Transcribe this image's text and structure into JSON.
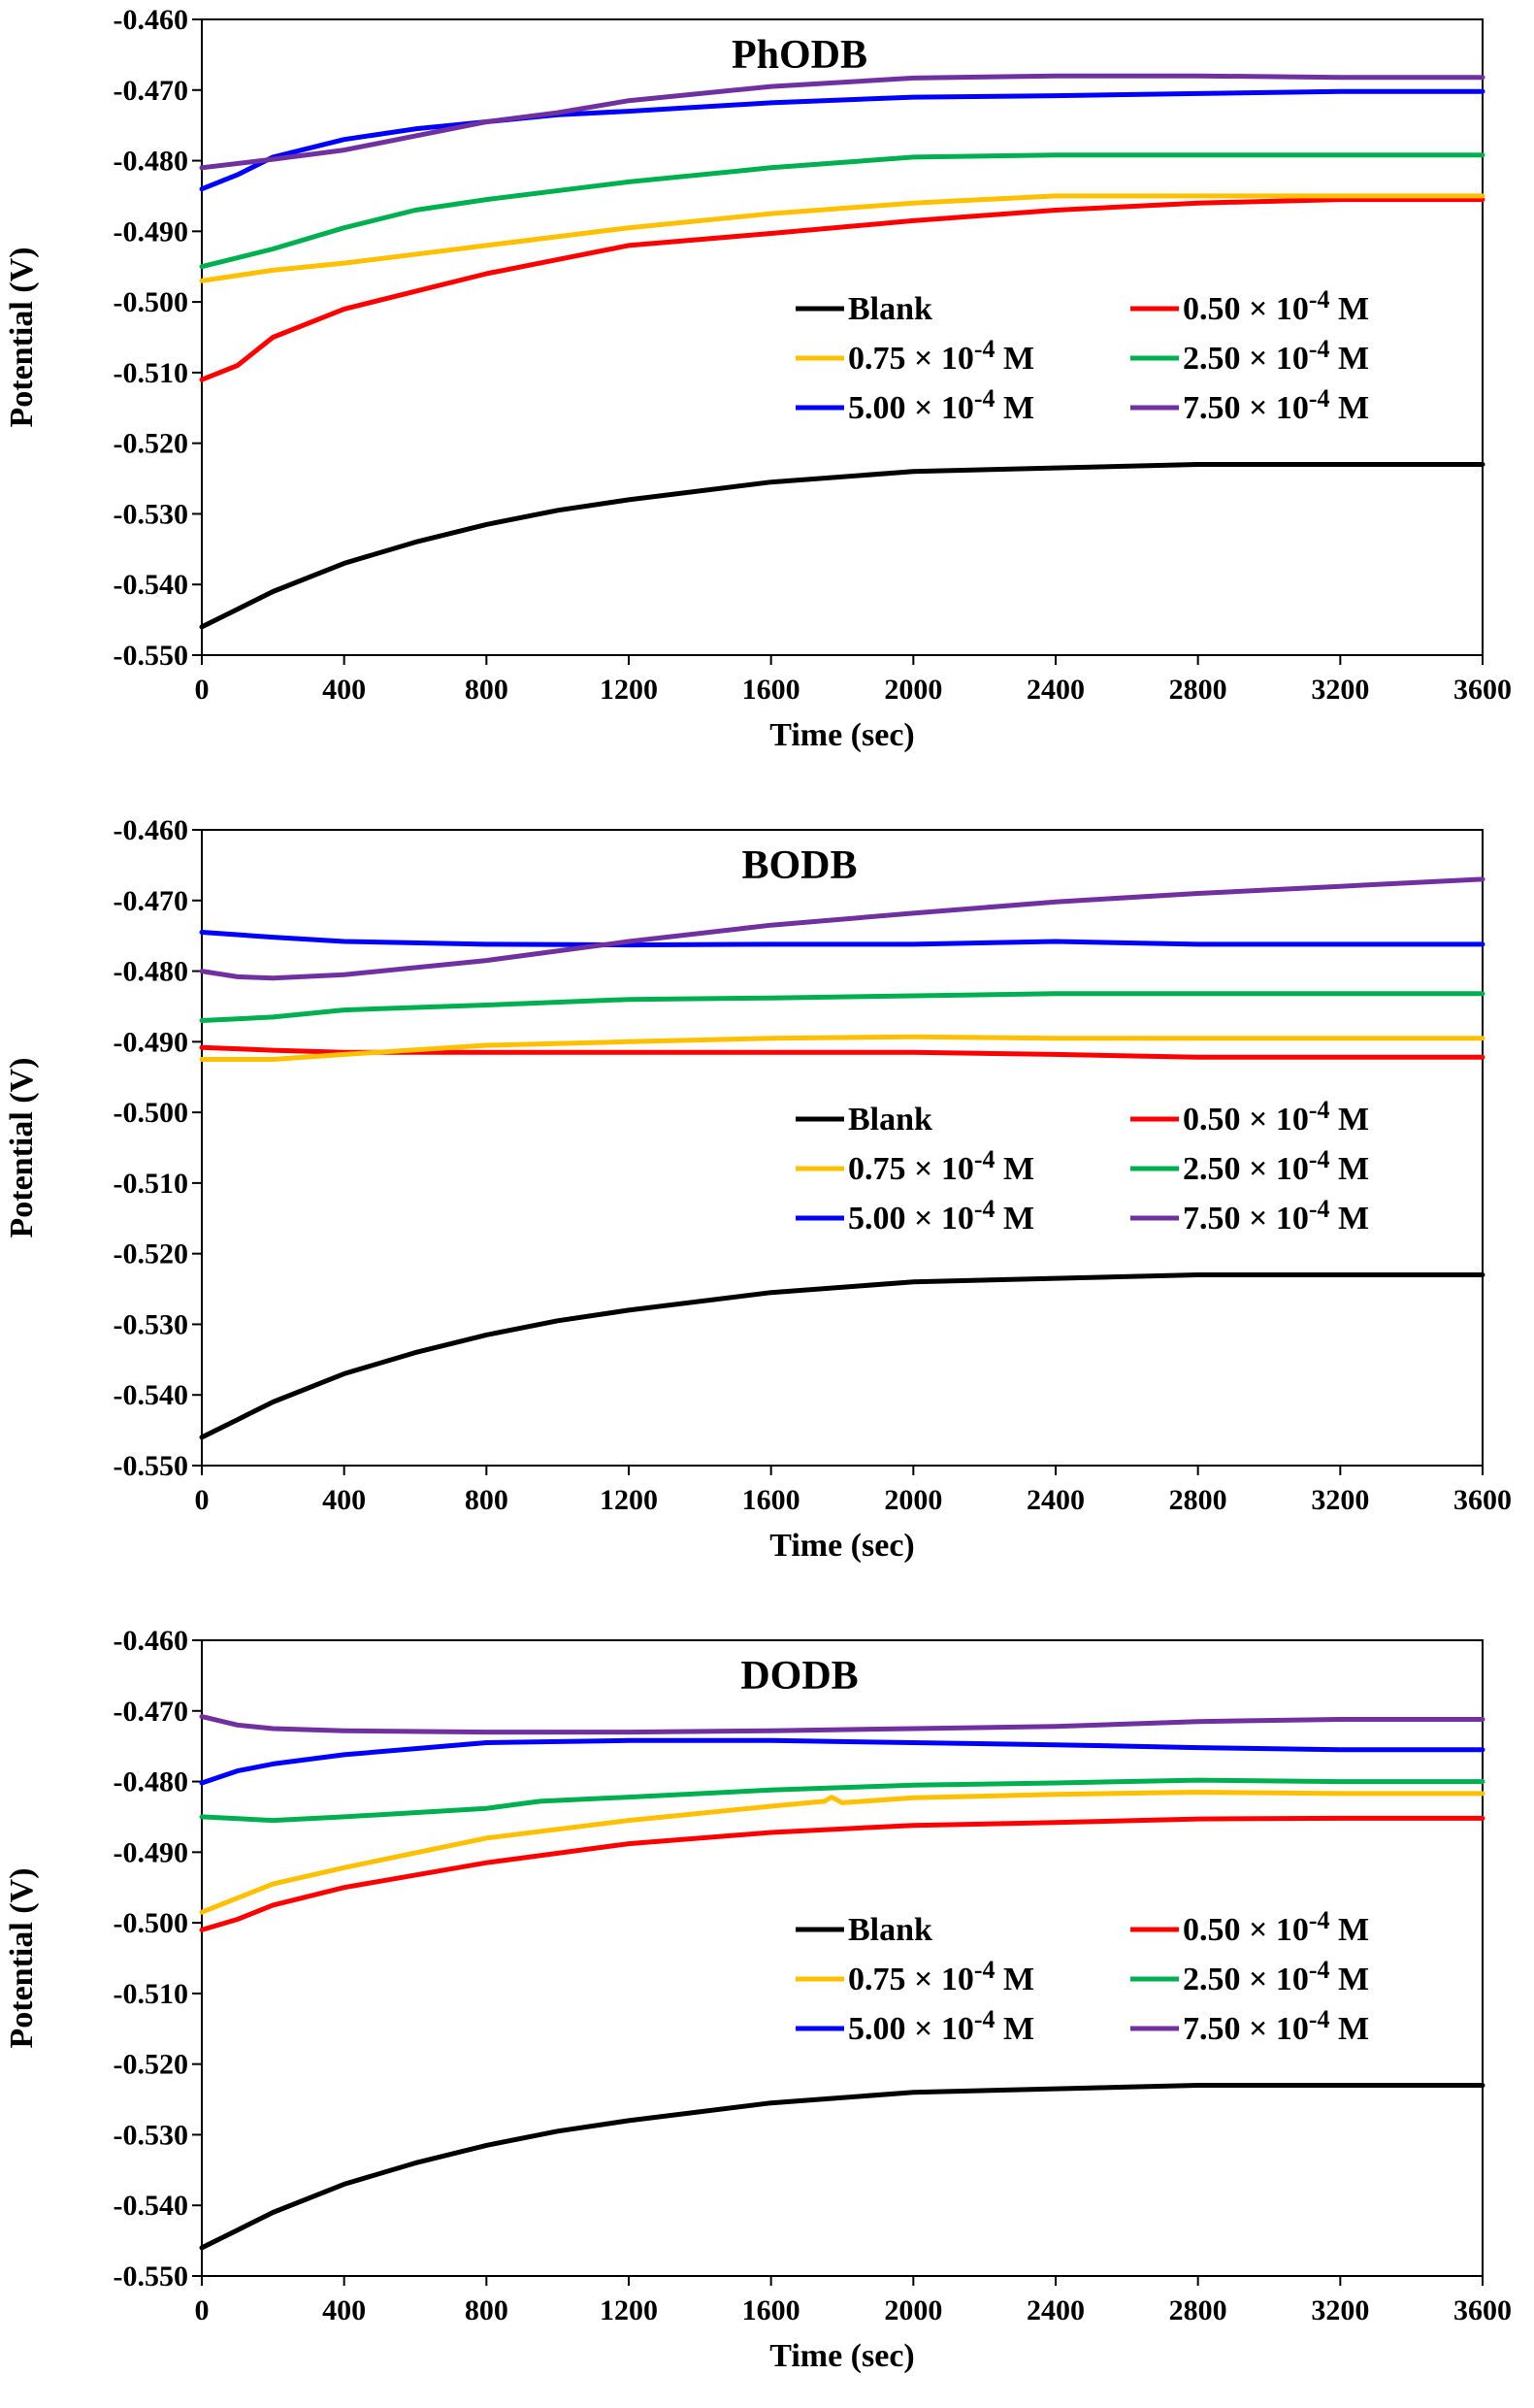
{
  "chart_data": [
    {
      "type": "line",
      "title": "PhODB",
      "xlabel": "Time (sec)",
      "ylabel": "Potential (V)",
      "xlim": [
        0,
        3600
      ],
      "ylim": [
        -0.55,
        -0.46
      ],
      "xticks": [
        0,
        400,
        800,
        1200,
        1600,
        2000,
        2400,
        2800,
        3200,
        3600
      ],
      "yticks": [
        -0.46,
        -0.47,
        -0.48,
        -0.49,
        -0.5,
        -0.51,
        -0.52,
        -0.53,
        -0.54,
        -0.55
      ],
      "ytick_labels": [
        "-0.460",
        "-0.470",
        "-0.480",
        "-0.490",
        "-0.500",
        "-0.510",
        "-0.520",
        "-0.530",
        "-0.540",
        "-0.550"
      ],
      "grid": false,
      "legend_position": "right",
      "series": [
        {
          "name": "Blank",
          "color": "#000000",
          "x": [
            0,
            100,
            200,
            400,
            600,
            800,
            1000,
            1200,
            1600,
            2000,
            2400,
            2800,
            3200,
            3600
          ],
          "y": [
            -0.546,
            -0.5435,
            -0.541,
            -0.537,
            -0.534,
            -0.5315,
            -0.5295,
            -0.528,
            -0.5255,
            -0.524,
            -0.5235,
            -0.523,
            -0.523,
            -0.523
          ]
        },
        {
          "name": "0.50 × 10-4 M",
          "color": "#ff0000",
          "x": [
            0,
            100,
            200,
            400,
            600,
            800,
            1000,
            1200,
            1600,
            2000,
            2400,
            2800,
            3200,
            3600
          ],
          "y": [
            -0.511,
            -0.509,
            -0.505,
            -0.501,
            -0.4985,
            -0.496,
            -0.494,
            -0.492,
            -0.4903,
            -0.4885,
            -0.487,
            -0.486,
            -0.4855,
            -0.4855
          ]
        },
        {
          "name": "0.75 × 10-4 M",
          "color": "#ffc000",
          "x": [
            0,
            200,
            400,
            800,
            1200,
            1600,
            2000,
            2400,
            2800,
            3200,
            3600
          ],
          "y": [
            -0.497,
            -0.4955,
            -0.4945,
            -0.492,
            -0.4895,
            -0.4875,
            -0.486,
            -0.485,
            -0.485,
            -0.485,
            -0.485
          ]
        },
        {
          "name": "2.50 × 10-4 M",
          "color": "#00b050",
          "x": [
            0,
            200,
            400,
            600,
            800,
            1200,
            1600,
            2000,
            2400,
            2800,
            3200,
            3600
          ],
          "y": [
            -0.495,
            -0.4925,
            -0.4895,
            -0.487,
            -0.4855,
            -0.483,
            -0.481,
            -0.4795,
            -0.4792,
            -0.4792,
            -0.4792,
            -0.4792
          ]
        },
        {
          "name": "5.00 × 10-4 M",
          "color": "#0000ff",
          "x": [
            0,
            100,
            200,
            400,
            600,
            800,
            1000,
            1200,
            1600,
            2000,
            2400,
            2800,
            3200,
            3600
          ],
          "y": [
            -0.484,
            -0.482,
            -0.4795,
            -0.477,
            -0.4755,
            -0.4745,
            -0.4735,
            -0.473,
            -0.4718,
            -0.471,
            -0.4708,
            -0.4705,
            -0.4702,
            -0.4702
          ]
        },
        {
          "name": "7.50 × 10-4 M",
          "color": "#7030a0",
          "x": [
            0,
            200,
            400,
            600,
            800,
            1000,
            1200,
            1600,
            2000,
            2400,
            2800,
            3200,
            3600
          ],
          "y": [
            -0.481,
            -0.4798,
            -0.4785,
            -0.4765,
            -0.4745,
            -0.4732,
            -0.4715,
            -0.4695,
            -0.4683,
            -0.468,
            -0.468,
            -0.4682,
            -0.4682
          ]
        }
      ]
    },
    {
      "type": "line",
      "title": "BODB",
      "xlabel": "Time (sec)",
      "ylabel": "Potential (V)",
      "xlim": [
        0,
        3600
      ],
      "ylim": [
        -0.55,
        -0.46
      ],
      "xticks": [
        0,
        400,
        800,
        1200,
        1600,
        2000,
        2400,
        2800,
        3200,
        3600
      ],
      "yticks": [
        -0.46,
        -0.47,
        -0.48,
        -0.49,
        -0.5,
        -0.51,
        -0.52,
        -0.53,
        -0.54,
        -0.55
      ],
      "ytick_labels": [
        "-0.460",
        "-0.470",
        "-0.480",
        "-0.490",
        "-0.500",
        "-0.510",
        "-0.520",
        "-0.530",
        "-0.540",
        "-0.550"
      ],
      "grid": false,
      "legend_position": "right",
      "series": [
        {
          "name": "Blank",
          "color": "#000000",
          "x": [
            0,
            100,
            200,
            400,
            600,
            800,
            1000,
            1200,
            1600,
            2000,
            2400,
            2800,
            3200,
            3600
          ],
          "y": [
            -0.546,
            -0.5435,
            -0.541,
            -0.537,
            -0.534,
            -0.5315,
            -0.5295,
            -0.528,
            -0.5255,
            -0.524,
            -0.5235,
            -0.523,
            -0.523,
            -0.523
          ]
        },
        {
          "name": "0.50 × 10-4 M",
          "color": "#ff0000",
          "x": [
            0,
            200,
            400,
            800,
            1200,
            1600,
            2000,
            2400,
            2800,
            3200,
            3600
          ],
          "y": [
            -0.4908,
            -0.4912,
            -0.4915,
            -0.4915,
            -0.4915,
            -0.4915,
            -0.4915,
            -0.4918,
            -0.4922,
            -0.4922,
            -0.4922
          ]
        },
        {
          "name": "0.75 × 10-4 M",
          "color": "#ffc000",
          "x": [
            0,
            200,
            400,
            800,
            1200,
            1600,
            2000,
            2400,
            2800,
            3200,
            3600
          ],
          "y": [
            -0.4925,
            -0.4925,
            -0.4918,
            -0.4905,
            -0.49,
            -0.4895,
            -0.4893,
            -0.4895,
            -0.4895,
            -0.4895,
            -0.4895
          ]
        },
        {
          "name": "2.50 × 10-4 M",
          "color": "#00b050",
          "x": [
            0,
            200,
            400,
            800,
            1200,
            1600,
            2000,
            2400,
            2800,
            3200,
            3600
          ],
          "y": [
            -0.487,
            -0.4865,
            -0.4855,
            -0.4848,
            -0.484,
            -0.4838,
            -0.4835,
            -0.4832,
            -0.4832,
            -0.4832,
            -0.4832
          ]
        },
        {
          "name": "5.00 × 10-4 M",
          "color": "#0000ff",
          "x": [
            0,
            200,
            400,
            800,
            1200,
            1600,
            2000,
            2400,
            2800,
            3200,
            3600
          ],
          "y": [
            -0.4745,
            -0.4752,
            -0.4758,
            -0.4762,
            -0.4763,
            -0.4762,
            -0.4762,
            -0.4758,
            -0.4762,
            -0.4762,
            -0.4762
          ]
        },
        {
          "name": "7.50 × 10-4 M",
          "color": "#7030a0",
          "x": [
            0,
            100,
            200,
            400,
            800,
            1200,
            1600,
            2000,
            2400,
            2800,
            3200,
            3600
          ],
          "y": [
            -0.48,
            -0.4808,
            -0.481,
            -0.4805,
            -0.4785,
            -0.4758,
            -0.4735,
            -0.4718,
            -0.4702,
            -0.469,
            -0.468,
            -0.467
          ]
        }
      ]
    },
    {
      "type": "line",
      "title": "DODB",
      "xlabel": "Time (sec)",
      "ylabel": "Potential (V)",
      "xlim": [
        0,
        3600
      ],
      "ylim": [
        -0.55,
        -0.46
      ],
      "xticks": [
        0,
        400,
        800,
        1200,
        1600,
        2000,
        2400,
        2800,
        3200,
        3600
      ],
      "yticks": [
        -0.46,
        -0.47,
        -0.48,
        -0.49,
        -0.5,
        -0.51,
        -0.52,
        -0.53,
        -0.54,
        -0.55
      ],
      "ytick_labels": [
        "-0.460",
        "-0.470",
        "-0.480",
        "-0.490",
        "-0.500",
        "-0.510",
        "-0.520",
        "-0.530",
        "-0.540",
        "-0.550"
      ],
      "grid": false,
      "legend_position": "right",
      "series": [
        {
          "name": "Blank",
          "color": "#000000",
          "x": [
            0,
            100,
            200,
            400,
            600,
            800,
            1000,
            1200,
            1600,
            2000,
            2400,
            2800,
            3200,
            3600
          ],
          "y": [
            -0.546,
            -0.5435,
            -0.541,
            -0.537,
            -0.534,
            -0.5315,
            -0.5295,
            -0.528,
            -0.5255,
            -0.524,
            -0.5235,
            -0.523,
            -0.523,
            -0.523
          ]
        },
        {
          "name": "0.50 × 10-4 M",
          "color": "#ff0000",
          "x": [
            0,
            100,
            200,
            400,
            800,
            1200,
            1600,
            2000,
            2400,
            2800,
            3200,
            3600
          ],
          "y": [
            -0.501,
            -0.4995,
            -0.4975,
            -0.495,
            -0.4915,
            -0.4888,
            -0.4872,
            -0.4862,
            -0.4858,
            -0.4853,
            -0.4852,
            -0.4852
          ]
        },
        {
          "name": "0.75 × 10-4 M",
          "color": "#ffc000",
          "x": [
            0,
            100,
            200,
            400,
            800,
            1200,
            1600,
            1750,
            1770,
            1800,
            2000,
            2400,
            2800,
            3200,
            3600
          ],
          "y": [
            -0.4985,
            -0.4965,
            -0.4945,
            -0.4922,
            -0.488,
            -0.4855,
            -0.4835,
            -0.4828,
            -0.4822,
            -0.483,
            -0.4823,
            -0.4818,
            -0.4815,
            -0.4817,
            -0.4817
          ]
        },
        {
          "name": "2.50 × 10-4 M",
          "color": "#00b050",
          "x": [
            0,
            200,
            400,
            800,
            950,
            1200,
            1600,
            2000,
            2400,
            2800,
            3200,
            3600
          ],
          "y": [
            -0.485,
            -0.4855,
            -0.485,
            -0.4838,
            -0.4828,
            -0.4822,
            -0.4812,
            -0.4805,
            -0.4802,
            -0.4798,
            -0.48,
            -0.48
          ]
        },
        {
          "name": "5.00 × 10-4 M",
          "color": "#0000ff",
          "x": [
            0,
            100,
            200,
            400,
            800,
            1200,
            1600,
            2000,
            2400,
            2800,
            3200,
            3600
          ],
          "y": [
            -0.4802,
            -0.4785,
            -0.4775,
            -0.4762,
            -0.4745,
            -0.4742,
            -0.4742,
            -0.4745,
            -0.4748,
            -0.4752,
            -0.4755,
            -0.4755
          ]
        },
        {
          "name": "7.50 × 10-4 M",
          "color": "#7030a0",
          "x": [
            0,
            100,
            200,
            400,
            800,
            1200,
            1600,
            2000,
            2400,
            2800,
            3200,
            3600
          ],
          "y": [
            -0.4708,
            -0.472,
            -0.4725,
            -0.4728,
            -0.473,
            -0.473,
            -0.4728,
            -0.4725,
            -0.4722,
            -0.4715,
            -0.4712,
            -0.4712
          ]
        }
      ]
    }
  ]
}
